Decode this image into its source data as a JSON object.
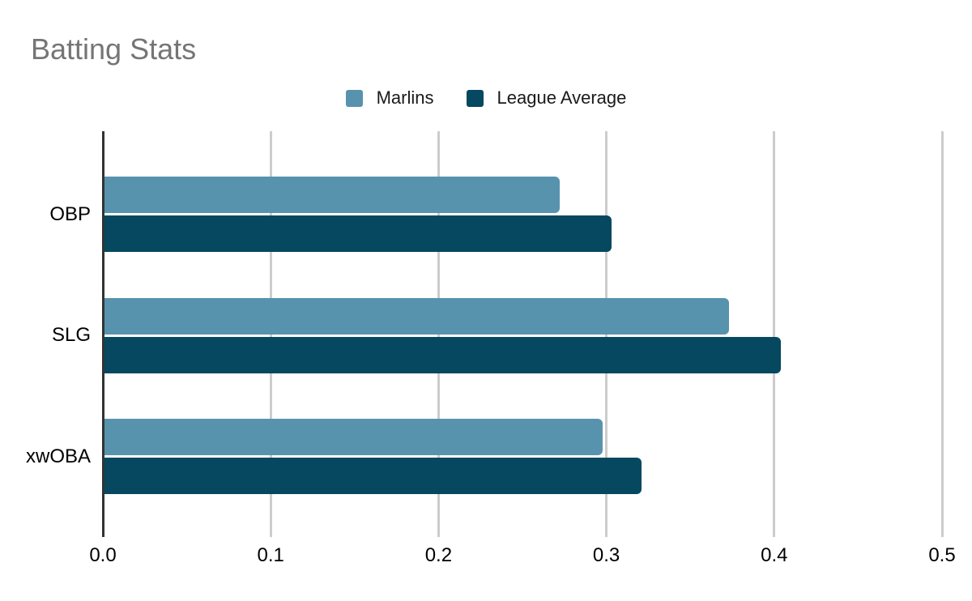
{
  "title": "Batting Stats",
  "colors": {
    "marlins_series": "#5893ae",
    "league_series": "#05485f",
    "title_text": "#757575",
    "axis_line": "#333333",
    "gridline": "#cccccc",
    "label_text": "#000000"
  },
  "legend": {
    "items": [
      {
        "label": "Marlins",
        "color": "#5893ae"
      },
      {
        "label": "League Average",
        "color": "#05485f"
      }
    ]
  },
  "chart_data": {
    "type": "bar",
    "orientation": "horizontal",
    "title": "Batting Stats",
    "categories": [
      "OBP",
      "SLG",
      "xwOBA"
    ],
    "series": [
      {
        "name": "Marlins",
        "color": "#5893ae",
        "values": [
          0.271,
          0.372,
          0.297
        ]
      },
      {
        "name": "League Average",
        "color": "#05485f",
        "values": [
          0.302,
          0.403,
          0.32
        ]
      }
    ],
    "xlabel": "",
    "ylabel": "",
    "xlim": [
      0.0,
      0.5
    ],
    "x_ticks": [
      "0.0",
      "0.1",
      "0.2",
      "0.3",
      "0.4",
      "0.5"
    ],
    "grid": true,
    "legend_position": "top-center"
  }
}
